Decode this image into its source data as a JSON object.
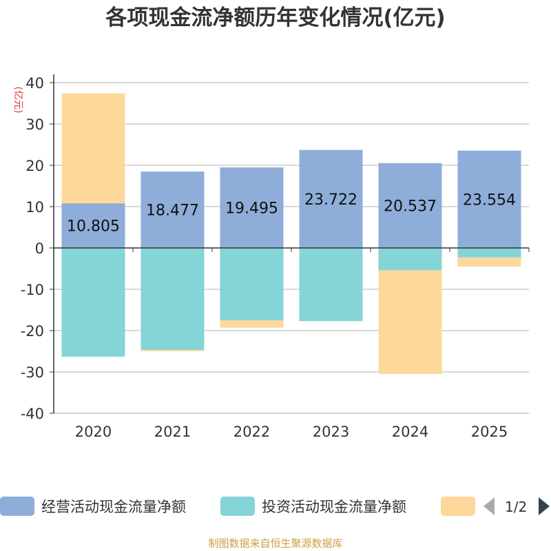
{
  "chart_data": {
    "type": "bar",
    "stacked": true,
    "title": "各项现金流净额历年变化情况(亿元)",
    "ylabel": "(亿元)",
    "ylim": [
      -40,
      40
    ],
    "yticks": [
      40,
      30,
      20,
      10,
      0,
      -10,
      -20,
      -30,
      -40
    ],
    "categories": [
      "2020",
      "2021",
      "2022",
      "2023",
      "2024",
      "2025"
    ],
    "series": [
      {
        "name": "经营活动现金流量净额",
        "color": "#8eadd9",
        "values": [
          10.805,
          18.477,
          19.495,
          23.722,
          20.537,
          23.554
        ],
        "labels": [
          "10.805",
          "18.477",
          "19.495",
          "23.722",
          "20.537",
          "23.554"
        ]
      },
      {
        "name": "投资活动现金流量净额",
        "color": "#84d4d8",
        "values": [
          -26.3,
          -24.7,
          -17.5,
          -17.7,
          -5.4,
          -2.3
        ]
      },
      {
        "name": "",
        "color": "#fdd89a",
        "values": [
          26.6,
          -0.3,
          -1.8,
          0,
          -25.1,
          -2.2
        ]
      }
    ],
    "legend_page": "1/2",
    "source": "制图数据来自恒生聚源数据库"
  }
}
